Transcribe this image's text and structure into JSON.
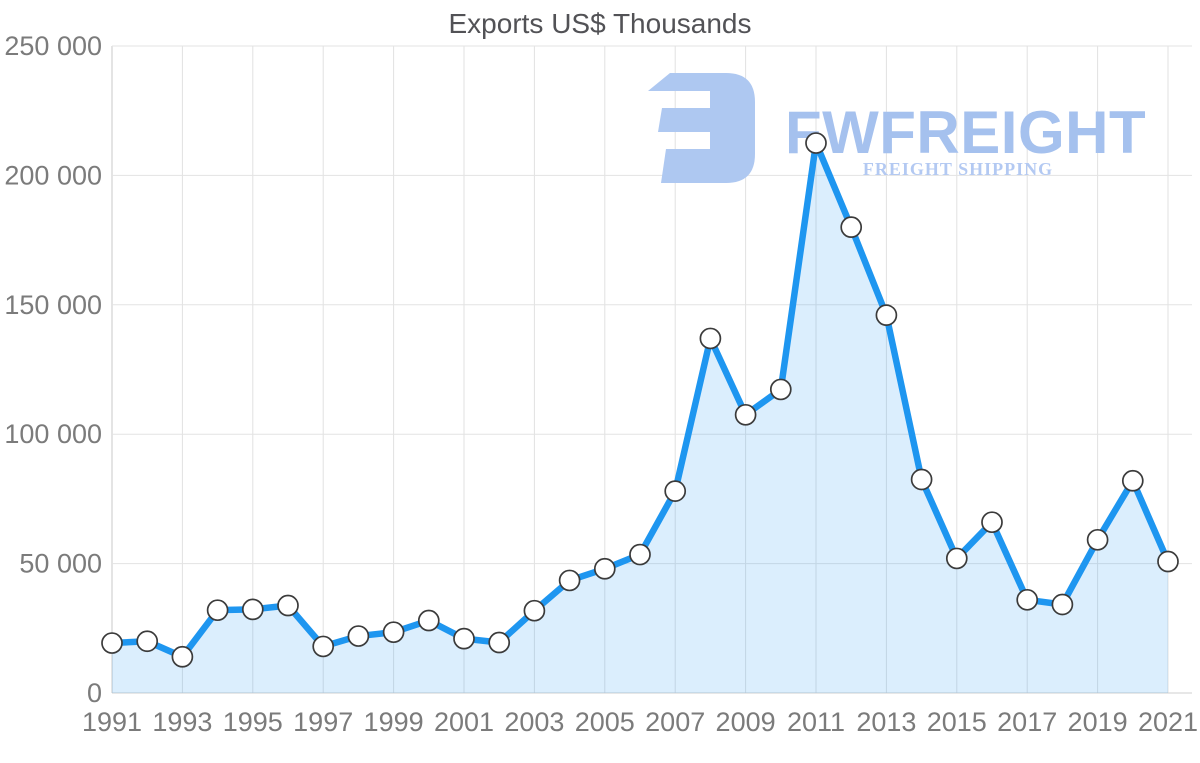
{
  "chart_data": {
    "type": "area",
    "title": "Exports US$ Thousands",
    "x": [
      1991,
      1992,
      1993,
      1994,
      1995,
      1996,
      1997,
      1998,
      1999,
      2000,
      2001,
      2002,
      2003,
      2004,
      2005,
      2006,
      2007,
      2008,
      2009,
      2010,
      2011,
      2012,
      2013,
      2014,
      2015,
      2016,
      2017,
      2018,
      2019,
      2020,
      2021
    ],
    "values": [
      19300,
      20000,
      14000,
      32000,
      32300,
      33800,
      18000,
      22000,
      23500,
      28000,
      21000,
      19500,
      31800,
      43500,
      48000,
      53500,
      78000,
      137000,
      107500,
      117300,
      212500,
      180000,
      146000,
      82500,
      52000,
      66000,
      36000,
      34200,
      59200,
      82000,
      50800
    ],
    "x_tick_labels": [
      "1991",
      "1993",
      "1995",
      "1997",
      "1999",
      "2001",
      "2003",
      "2005",
      "2007",
      "2009",
      "2011",
      "2013",
      "2015",
      "2017",
      "2019",
      "2021"
    ],
    "y_ticks": [
      0,
      50000,
      100000,
      150000,
      200000,
      250000
    ],
    "y_tick_labels": [
      "0",
      "50 000",
      "100 000",
      "150 000",
      "200 000",
      "250 000"
    ],
    "ylim": [
      0,
      250000
    ],
    "xlabel": "",
    "ylabel": "",
    "grid": true,
    "legend_position": "none",
    "colors": {
      "line": "#1e96f0",
      "fill": "rgba(33,150,243,0.16)",
      "marker_fill": "#ffffff",
      "marker_stroke": "#3b3b3b",
      "grid_h": "#e3e3e3",
      "grid_v": "#e1e1e1",
      "axis": "#c9c9c9",
      "baseline": "#cfcfcf",
      "tick_text": "#7b7b7b",
      "title_text": "#525256"
    }
  },
  "watermark": {
    "wordmark": "FWFREIGHT",
    "tagline": "FREIGHT SHIPPING",
    "icon_color": "#aec8f1",
    "wordmark_color": "#a5c1ee",
    "tagline_color": "#b3c9f2"
  }
}
